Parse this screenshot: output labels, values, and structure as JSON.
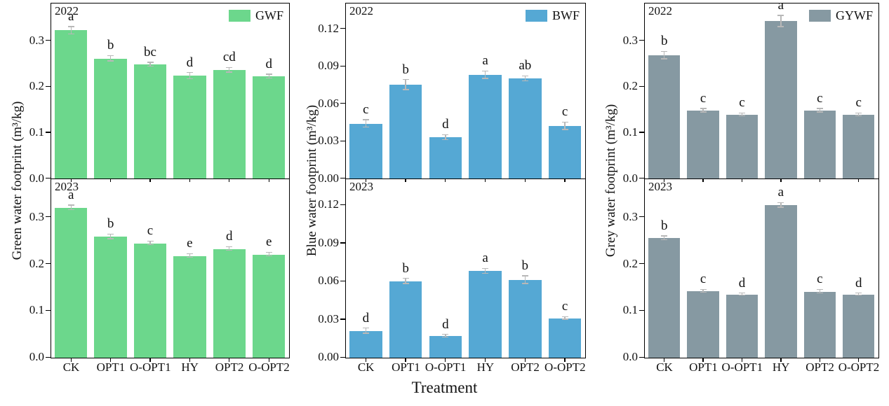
{
  "figure": {
    "xlabel": "Treatment"
  },
  "colors": {
    "axis": "#000000",
    "error_bar": "#b8b8b8",
    "green": "#6cd78c",
    "blue": "#55a8d4",
    "grey": "#8699a2"
  },
  "chart_data": [
    {
      "type": "bar",
      "name": "green-water-footprint",
      "legend_label": "GWF",
      "bar_color": "#6cd78c",
      "y_axis_title": "Green water footprint (m³/kg)",
      "ylim": [
        0,
        0.38
      ],
      "grid": false,
      "legend_position": "top-right",
      "ytick_labels": [
        "0.0",
        "0.1",
        "0.2",
        "0.3"
      ],
      "ytick_values": [
        0,
        0.1,
        0.2,
        0.3
      ],
      "categories": [
        "CK",
        "OPT1",
        "O-OPT1",
        "HY",
        "OPT2",
        "O-OPT2"
      ],
      "panels": [
        {
          "year": "2022",
          "values": [
            0.322,
            0.261,
            0.248,
            0.223,
            0.236,
            0.222
          ],
          "errors": [
            0.008,
            0.006,
            0.004,
            0.007,
            0.005,
            0.004
          ],
          "letters": [
            "a",
            "b",
            "bc",
            "d",
            "cd",
            "d"
          ]
        },
        {
          "year": "2023",
          "values": [
            0.32,
            0.258,
            0.244,
            0.217,
            0.232,
            0.22
          ],
          "errors": [
            0.005,
            0.005,
            0.004,
            0.004,
            0.004,
            0.004
          ],
          "letters": [
            "a",
            "b",
            "c",
            "e",
            "d",
            "e"
          ]
        }
      ]
    },
    {
      "type": "bar",
      "name": "blue-water-footprint",
      "legend_label": "BWF",
      "bar_color": "#55a8d4",
      "y_axis_title": "Blue water footprint (m³/kg)",
      "ylim": [
        0,
        0.14
      ],
      "grid": false,
      "legend_position": "top-right",
      "ytick_labels": [
        "0.00",
        "0.03",
        "0.06",
        "0.09",
        "0.12"
      ],
      "ytick_values": [
        0,
        0.03,
        0.06,
        0.09,
        0.12
      ],
      "categories": [
        "CK",
        "OPT1",
        "O-OPT1",
        "HY",
        "OPT2",
        "O-OPT2"
      ],
      "panels": [
        {
          "year": "2022",
          "values": [
            0.044,
            0.075,
            0.033,
            0.083,
            0.08,
            0.042
          ],
          "errors": [
            0.003,
            0.004,
            0.002,
            0.003,
            0.002,
            0.003
          ],
          "letters": [
            "c",
            "b",
            "d",
            "a",
            "ab",
            "c"
          ]
        },
        {
          "year": "2023",
          "values": [
            0.021,
            0.06,
            0.017,
            0.068,
            0.061,
            0.031
          ],
          "errors": [
            0.002,
            0.002,
            0.001,
            0.002,
            0.003,
            0.001
          ],
          "letters": [
            "d",
            "b",
            "d",
            "a",
            "b",
            "c"
          ]
        }
      ]
    },
    {
      "type": "bar",
      "name": "grey-water-footprint",
      "legend_label": "GYWF",
      "bar_color": "#8699a2",
      "y_axis_title": "Grey water footprint (m³/kg)",
      "ylim": [
        0,
        0.38
      ],
      "grid": false,
      "legend_position": "top-right",
      "ytick_labels": [
        "0.0",
        "0.1",
        "0.2",
        "0.3"
      ],
      "ytick_values": [
        0,
        0.1,
        0.2,
        0.3
      ],
      "categories": [
        "CK",
        "OPT1",
        "O-OPT1",
        "HY",
        "OPT2",
        "O-OPT2"
      ],
      "panels": [
        {
          "year": "2022",
          "values": [
            0.268,
            0.148,
            0.139,
            0.342,
            0.148,
            0.139
          ],
          "errors": [
            0.008,
            0.004,
            0.003,
            0.012,
            0.004,
            0.003
          ],
          "letters": [
            "b",
            "c",
            "c",
            "a",
            "c",
            "c"
          ]
        },
        {
          "year": "2023",
          "values": [
            0.255,
            0.142,
            0.135,
            0.325,
            0.141,
            0.135
          ],
          "errors": [
            0.004,
            0.003,
            0.002,
            0.005,
            0.004,
            0.002
          ],
          "letters": [
            "b",
            "c",
            "d",
            "a",
            "c",
            "d"
          ]
        }
      ]
    }
  ]
}
